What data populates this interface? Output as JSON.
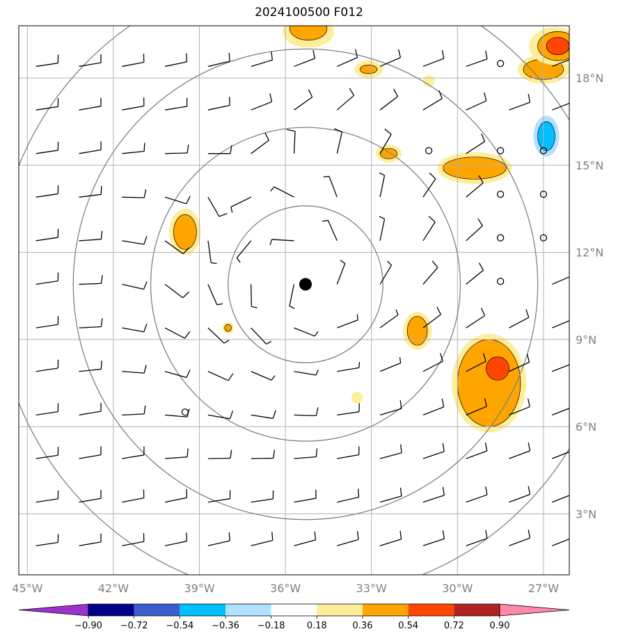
{
  "title": "2024100500 F012",
  "map": {
    "lon_range": [
      -45.3,
      -26.1
    ],
    "lat_range": [
      0.9,
      19.8
    ],
    "lon_ticks": [
      {
        "value": -45,
        "label": "45°W"
      },
      {
        "value": -42,
        "label": "42°W"
      },
      {
        "value": -39,
        "label": "39°W"
      },
      {
        "value": -36,
        "label": "36°W"
      },
      {
        "value": -33,
        "label": "33°W"
      },
      {
        "value": -30,
        "label": "30°W"
      },
      {
        "value": -27,
        "label": "27°W"
      }
    ],
    "lat_ticks": [
      {
        "value": 3,
        "label": "3°N"
      },
      {
        "value": 6,
        "label": "6°N"
      },
      {
        "value": 9,
        "label": "9°N"
      },
      {
        "value": 12,
        "label": "12°N"
      },
      {
        "value": 15,
        "label": "15°N"
      },
      {
        "value": 18,
        "label": "18°N"
      }
    ],
    "gridlines": true,
    "center": {
      "lon": -35.3,
      "lat": 10.9
    },
    "range_ring_radii_deg": [
      2.7,
      5.4,
      8.1,
      10.8
    ],
    "barb_grid": {
      "lon_start": -44.7,
      "lon_step": 1.5,
      "lat_start": 1.9,
      "lat_step": 1.5,
      "cols": 13,
      "rows": 13
    }
  },
  "colorbar": {
    "colors": [
      "#9933cc",
      "#00008b",
      "#3a5fcd",
      "#00bfff",
      "#b0e2ff",
      "#ffffff",
      "#ffee99",
      "#ffa500",
      "#ff4500",
      "#b22222",
      "#ff88aa"
    ],
    "boundaries": [
      "−0.90",
      "−0.72",
      "−0.54",
      "−0.36",
      "−0.18",
      "0.18",
      "0.36",
      "0.54",
      "0.72",
      "0.90"
    ],
    "extend": "both"
  },
  "contours": [
    {
      "level": 0.18,
      "color": "#ffee99",
      "lon": -35.2,
      "lat": 19.6,
      "rx": 0.9,
      "ry": 0.55
    },
    {
      "level": 0.36,
      "color": "#ffa500",
      "lon": -35.2,
      "lat": 19.7,
      "rx": 0.65,
      "ry": 0.4
    },
    {
      "level": 0.18,
      "color": "#ffee99",
      "lon": -31.0,
      "lat": 17.9,
      "rx": 0.2,
      "ry": 0.2
    },
    {
      "level": 0.18,
      "color": "#ffee99",
      "lon": -33.1,
      "lat": 18.3,
      "rx": 0.5,
      "ry": 0.3
    },
    {
      "level": 0.36,
      "color": "#ffa500",
      "lon": -33.1,
      "lat": 18.3,
      "rx": 0.3,
      "ry": 0.15
    },
    {
      "level": 0.18,
      "color": "#ffee99",
      "lon": -27.0,
      "lat": 18.3,
      "rx": 0.9,
      "ry": 0.5
    },
    {
      "level": 0.36,
      "color": "#ffa500",
      "lon": -27.0,
      "lat": 18.3,
      "rx": 0.7,
      "ry": 0.35
    },
    {
      "level": 0.18,
      "color": "#ffee99",
      "lon": -26.6,
      "lat": 19.1,
      "rx": 0.9,
      "ry": 0.65
    },
    {
      "level": 0.36,
      "color": "#ffa500",
      "lon": -26.5,
      "lat": 19.1,
      "rx": 0.7,
      "ry": 0.5
    },
    {
      "level": 0.54,
      "color": "#ff4500",
      "lon": -26.5,
      "lat": 19.1,
      "rx": 0.4,
      "ry": 0.3
    },
    {
      "level": -0.18,
      "color": "#b0e2ff",
      "lon": -26.9,
      "lat": 16.0,
      "rx": 0.45,
      "ry": 0.7
    },
    {
      "level": -0.36,
      "color": "#00bfff",
      "lon": -26.9,
      "lat": 16.0,
      "rx": 0.3,
      "ry": 0.5
    },
    {
      "level": 0.18,
      "color": "#ffee99",
      "lon": -32.4,
      "lat": 15.4,
      "rx": 0.45,
      "ry": 0.3
    },
    {
      "level": 0.36,
      "color": "#ffa500",
      "lon": -32.4,
      "lat": 15.4,
      "rx": 0.3,
      "ry": 0.18
    },
    {
      "level": 0.18,
      "color": "#ffee99",
      "lon": -29.4,
      "lat": 14.9,
      "rx": 1.3,
      "ry": 0.55
    },
    {
      "level": 0.36,
      "color": "#ffa500",
      "lon": -29.4,
      "lat": 14.9,
      "rx": 1.1,
      "ry": 0.38
    },
    {
      "level": 0.18,
      "color": "#ffee99",
      "lon": -39.5,
      "lat": 12.7,
      "rx": 0.55,
      "ry": 0.8
    },
    {
      "level": 0.36,
      "color": "#ffa500",
      "lon": -39.5,
      "lat": 12.7,
      "rx": 0.4,
      "ry": 0.6
    },
    {
      "level": 0.18,
      "color": "#ffee99",
      "lon": -38.0,
      "lat": 9.4,
      "rx": 0.2,
      "ry": 0.2
    },
    {
      "level": 0.36,
      "color": "#ffa500",
      "lon": -38.0,
      "lat": 9.4,
      "rx": 0.12,
      "ry": 0.12
    },
    {
      "level": 0.18,
      "color": "#ffee99",
      "lon": -31.4,
      "lat": 9.3,
      "rx": 0.5,
      "ry": 0.65
    },
    {
      "level": 0.36,
      "color": "#ffa500",
      "lon": -31.4,
      "lat": 9.3,
      "rx": 0.35,
      "ry": 0.5
    },
    {
      "level": 0.18,
      "color": "#ffee99",
      "lon": -33.5,
      "lat": 7.0,
      "rx": 0.2,
      "ry": 0.2
    },
    {
      "level": 0.18,
      "color": "#ffee99",
      "lon": -28.9,
      "lat": 7.5,
      "rx": 1.3,
      "ry": 1.7
    },
    {
      "level": 0.36,
      "color": "#ffa500",
      "lon": -28.9,
      "lat": 7.5,
      "rx": 1.1,
      "ry": 1.5
    },
    {
      "level": 0.54,
      "color": "#ff4500",
      "lon": -28.6,
      "lat": 8.0,
      "rx": 0.4,
      "ry": 0.4
    }
  ],
  "station_circles": [
    {
      "lon": -28.5,
      "lat": 18.5
    },
    {
      "lon": -31.0,
      "lat": 15.5
    },
    {
      "lon": -28.5,
      "lat": 15.5
    },
    {
      "lon": -27.0,
      "lat": 15.5
    },
    {
      "lon": -28.5,
      "lat": 14.0
    },
    {
      "lon": -27.0,
      "lat": 14.0
    },
    {
      "lon": -28.5,
      "lat": 12.5
    },
    {
      "lon": -27.0,
      "lat": 12.5
    },
    {
      "lon": -28.5,
      "lat": 11.0
    },
    {
      "lon": -39.5,
      "lat": 6.5
    }
  ]
}
